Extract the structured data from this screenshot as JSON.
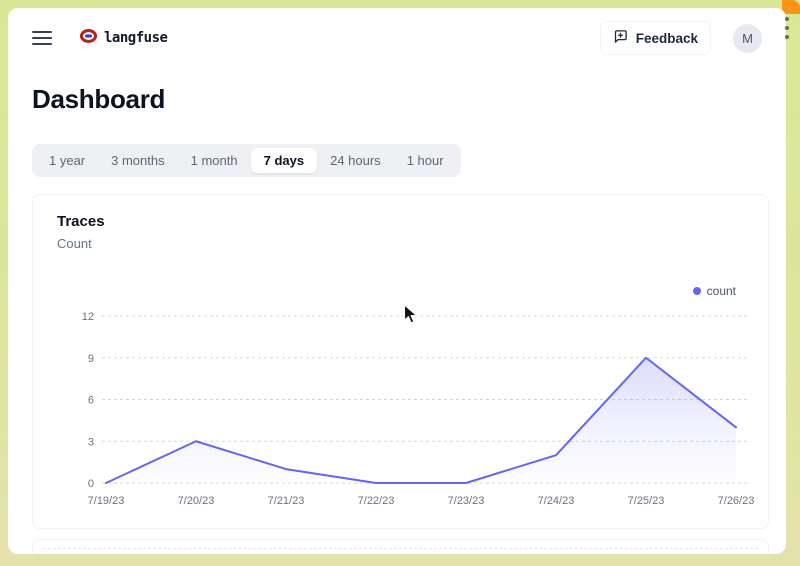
{
  "header": {
    "menu_icon": "hamburger-menu",
    "brand_icon": "knot-logo",
    "brand_text": "langfuse",
    "feedback_button": {
      "icon": "message-square-plus-icon",
      "label": "Feedback"
    },
    "avatar_initial": "M"
  },
  "page_title": "Dashboard",
  "time_range_tabs": [
    {
      "label": "1 year",
      "active": false
    },
    {
      "label": "3 months",
      "active": false
    },
    {
      "label": "1 month",
      "active": false
    },
    {
      "label": "7 days",
      "active": true
    },
    {
      "label": "24 hours",
      "active": false
    },
    {
      "label": "1 hour",
      "active": false
    }
  ],
  "traces_card": {
    "title": "Traces",
    "subtitle": "Count",
    "legend": [
      {
        "label": "count",
        "marker": "dot",
        "color": "#6366f1"
      }
    ]
  },
  "chart_data": {
    "type": "area",
    "title": "Traces",
    "ylabel": "Count",
    "categories": [
      "7/19/23",
      "7/20/23",
      "7/21/23",
      "7/22/23",
      "7/23/23",
      "7/24/23",
      "7/25/23",
      "7/26/23"
    ],
    "series": [
      {
        "name": "count",
        "values": [
          0,
          3,
          1,
          0,
          0,
          2,
          9,
          4
        ]
      }
    ],
    "ylim": [
      0,
      12
    ],
    "yticks": [
      0,
      3,
      6,
      9,
      12
    ],
    "grid": "horizontal-dashed",
    "legend_position": "top-right",
    "line_color": "#6366f1"
  },
  "colors": {
    "frame": "#dde69c",
    "frame_accent": "#f99417",
    "accent_line": "#6366f1",
    "tab_bar_bg": "#eef0f4"
  }
}
